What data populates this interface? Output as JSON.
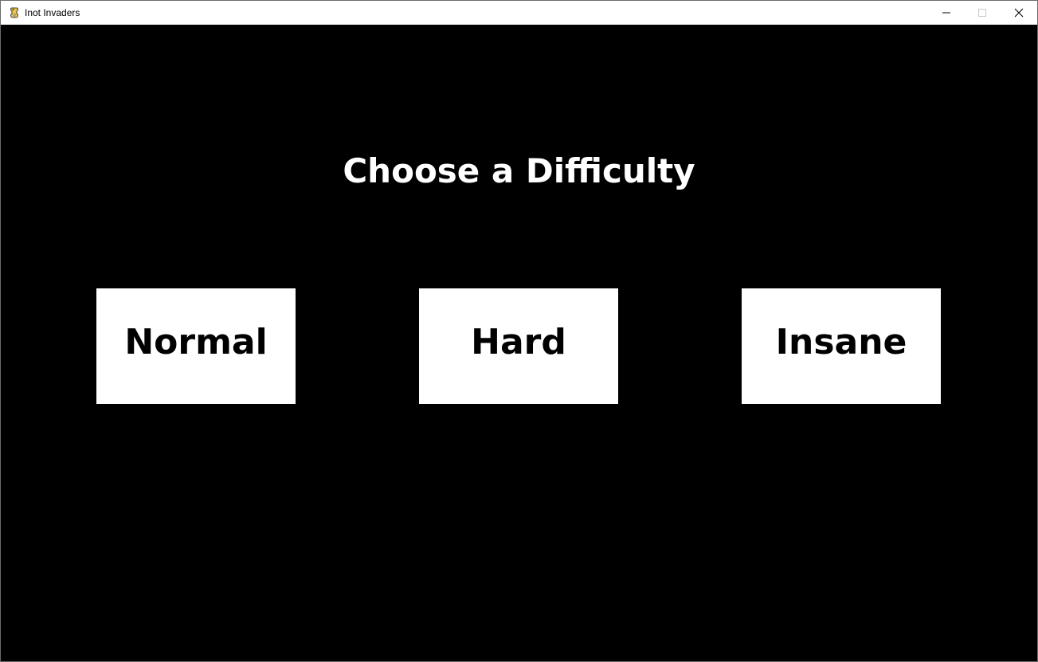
{
  "window": {
    "title": "Inot Invaders",
    "icon": "pygame-snake-icon",
    "controls": {
      "minimize_icon": "minimize-icon",
      "maximize_icon": "maximize-icon",
      "close_icon": "close-icon"
    }
  },
  "screen": {
    "heading": "Choose a Difficulty",
    "background_color": "#000000",
    "button_color": "#ffffff",
    "buttons": [
      {
        "label": "Normal"
      },
      {
        "label": "Hard"
      },
      {
        "label": "Insane"
      }
    ]
  }
}
